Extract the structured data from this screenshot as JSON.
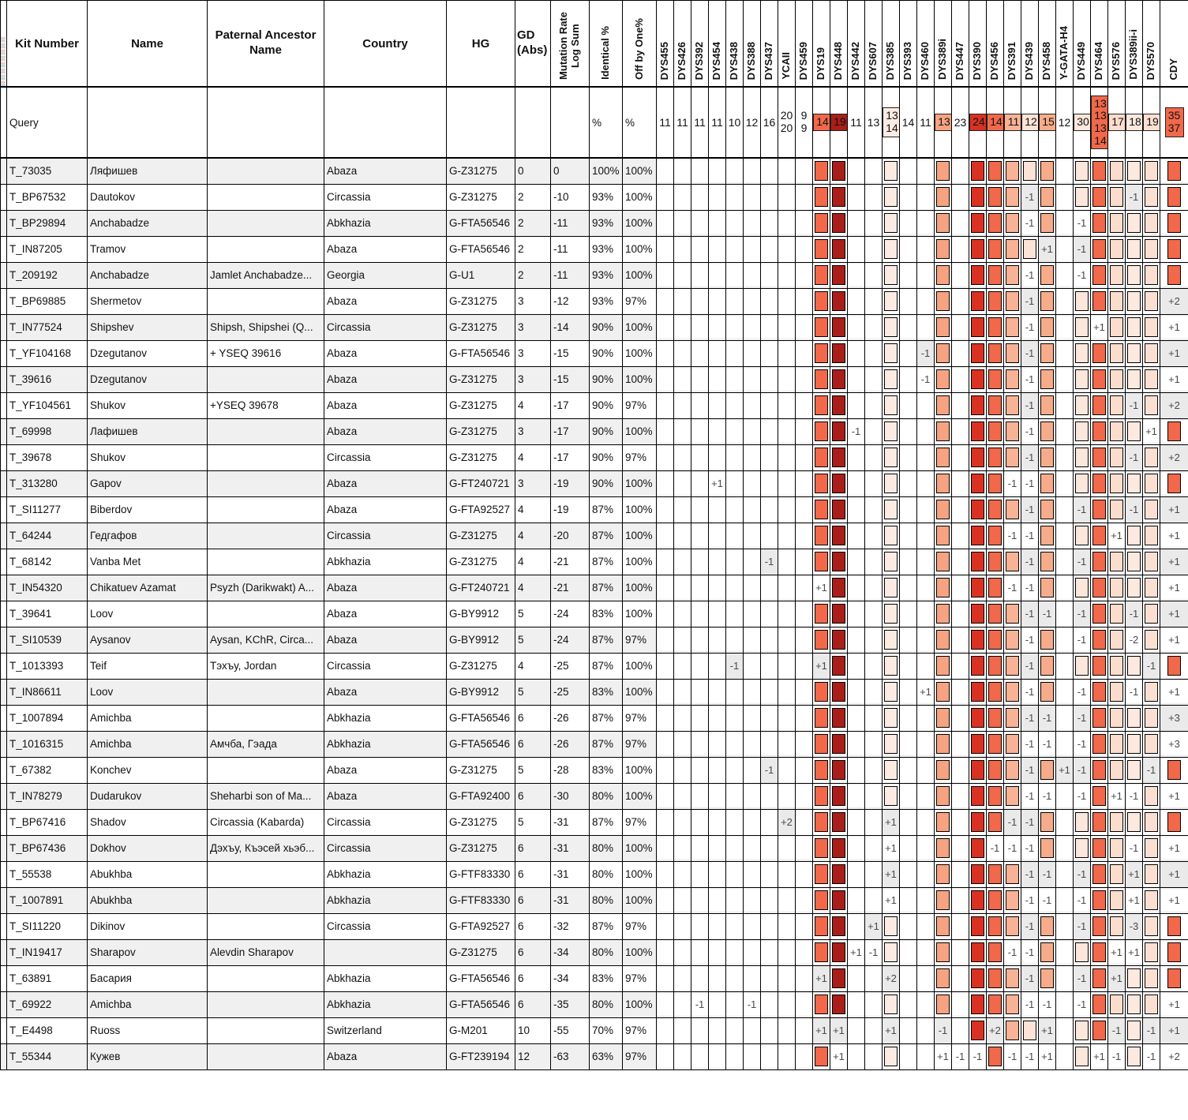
{
  "header": {
    "kit": "Kit Number",
    "name": "Name",
    "ancestor": "Paternal Ancestor Name",
    "country": "Country",
    "hg": "HG",
    "gd_line1": "GD",
    "gd_line2": "(Abs)",
    "mrls_line1": "Mutation Rate",
    "mrls_line2": "Log Sum",
    "identical": "Identical %",
    "offby": "Off by One%"
  },
  "query": {
    "label": "Query",
    "identical": "%",
    "offby": "%"
  },
  "markers": [
    {
      "id": "DYS455",
      "q": "11",
      "color": null
    },
    {
      "id": "DYS426",
      "q": "11",
      "color": null
    },
    {
      "id": "DYS392",
      "q": "11",
      "color": null
    },
    {
      "id": "DYS454",
      "q": "11",
      "color": null
    },
    {
      "id": "DYS438",
      "q": "10",
      "color": null
    },
    {
      "id": "DYS388",
      "q": "12",
      "color": null
    },
    {
      "id": "DYS437",
      "q": "16",
      "color": null
    },
    {
      "id": "YCAII",
      "q": "20 20",
      "color": null
    },
    {
      "id": "DYS459",
      "q": "9 9",
      "color": null
    },
    {
      "id": "DYS19",
      "q": "14",
      "color": "#f1684a"
    },
    {
      "id": "DYS448",
      "q": "19",
      "color": "#a91e18"
    },
    {
      "id": "DYS442",
      "q": "11",
      "color": null
    },
    {
      "id": "DYS607",
      "q": "13",
      "color": null
    },
    {
      "id": "DYS385",
      "q": "13 14",
      "color": "#fcebe2"
    },
    {
      "id": "DYS393",
      "q": "14",
      "color": null
    },
    {
      "id": "DYS460",
      "q": "11",
      "color": null
    },
    {
      "id": "DYS389i",
      "q": "13",
      "color": "#f6a382"
    },
    {
      "id": "DYS447",
      "q": "23",
      "color": null
    },
    {
      "id": "DYS390",
      "q": "24",
      "color": "#d93222"
    },
    {
      "id": "DYS456",
      "q": "14",
      "color": "#f1684a"
    },
    {
      "id": "DYS391",
      "q": "11",
      "color": "#f8b295"
    },
    {
      "id": "DYS439",
      "q": "12",
      "color": "#fce3d7"
    },
    {
      "id": "DYS458",
      "q": "15",
      "color": "#f6ac8a"
    },
    {
      "id": "Y-GATA-H4",
      "q": "12",
      "color": null
    },
    {
      "id": "DYS449",
      "q": "30",
      "color": "#fbe7db"
    },
    {
      "id": "DYS464",
      "q": "13 13 13 14",
      "color": "#f1684a"
    },
    {
      "id": "DYS576",
      "q": "17",
      "color": "#fbdccd"
    },
    {
      "id": "DYS389ii-i",
      "q": "18",
      "color": "#fce9df"
    },
    {
      "id": "DYS570",
      "q": "19",
      "color": "#fbdfd2"
    },
    {
      "id": "CDY",
      "q": "35 37",
      "color": "#f1684a"
    }
  ],
  "rows": [
    {
      "kit": "T_73035",
      "name": "Ляфишев",
      "ancestor": "",
      "country": "Abaza",
      "hg": "G-Z31275",
      "gd": "0",
      "mrls": "0",
      "identical": "100%",
      "offby": "100%",
      "m": {}
    },
    {
      "kit": "T_BP67532",
      "name": "Dautokov",
      "ancestor": "",
      "country": "Circassia",
      "hg": "G-Z31275",
      "gd": "2",
      "mrls": "-10",
      "identical": "93%",
      "offby": "100%",
      "m": {
        "21": "-1",
        "27": "-1"
      }
    },
    {
      "kit": "T_BP29894",
      "name": "Anchabadze",
      "ancestor": "",
      "country": "Abkhazia",
      "hg": "G-FTA56546",
      "gd": "2",
      "mrls": "-11",
      "identical": "93%",
      "offby": "100%",
      "m": {
        "21": "-1",
        "24": "-1"
      }
    },
    {
      "kit": "T_IN87205",
      "name": "Tramov",
      "ancestor": "",
      "country": "Abaza",
      "hg": "G-FTA56546",
      "gd": "2",
      "mrls": "-11",
      "identical": "93%",
      "offby": "100%",
      "m": {
        "22": "+1",
        "24": "-1"
      }
    },
    {
      "kit": "T_209192",
      "name": "Anchabadze",
      "ancestor": "Jamlet Anchabadze...",
      "country": "Georgia",
      "hg": "G-U1",
      "gd": "2",
      "mrls": "-11",
      "identical": "93%",
      "offby": "100%",
      "m": {
        "21": "-1",
        "24": "-1"
      }
    },
    {
      "kit": "T_BP69885",
      "name": "Shermetov",
      "ancestor": "",
      "country": "Abaza",
      "hg": "G-Z31275",
      "gd": "3",
      "mrls": "-12",
      "identical": "93%",
      "offby": "97%",
      "m": {
        "21": "-1",
        "29": "+2"
      }
    },
    {
      "kit": "T_IN77524",
      "name": "Shipshev",
      "ancestor": "Shipsh, Shipshei (Q...",
      "country": "Circassia",
      "hg": "G-Z31275",
      "gd": "3",
      "mrls": "-14",
      "identical": "90%",
      "offby": "100%",
      "m": {
        "21": "-1",
        "25": "+1",
        "29": "+1"
      }
    },
    {
      "kit": "T_YF104168",
      "name": "Dzegutanov",
      "ancestor": "+ YSEQ 39616",
      "country": "Abaza",
      "hg": "G-FTA56546",
      "gd": "3",
      "mrls": "-15",
      "identical": "90%",
      "offby": "100%",
      "m": {
        "15": "-1",
        "21": "-1",
        "29": "+1"
      }
    },
    {
      "kit": "T_39616",
      "name": "Dzegutanov",
      "ancestor": "",
      "country": "Abaza",
      "hg": "G-Z31275",
      "gd": "3",
      "mrls": "-15",
      "identical": "90%",
      "offby": "100%",
      "m": {
        "15": "-1",
        "21": "-1",
        "29": "+1"
      }
    },
    {
      "kit": "T_YF104561",
      "name": "Shukov",
      "ancestor": "+YSEQ 39678",
      "country": "Abaza",
      "hg": "G-Z31275",
      "gd": "4",
      "mrls": "-17",
      "identical": "90%",
      "offby": "97%",
      "m": {
        "21": "-1",
        "27": "-1",
        "29": "+2"
      }
    },
    {
      "kit": "T_69998",
      "name": "Лафишев",
      "ancestor": "",
      "country": "Abaza",
      "hg": "G-Z31275",
      "gd": "3",
      "mrls": "-17",
      "identical": "90%",
      "offby": "100%",
      "m": {
        "11": "-1",
        "21": "-1",
        "28": "+1"
      }
    },
    {
      "kit": "T_39678",
      "name": "Shukov",
      "ancestor": "",
      "country": "Circassia",
      "hg": "G-Z31275",
      "gd": "4",
      "mrls": "-17",
      "identical": "90%",
      "offby": "97%",
      "m": {
        "21": "-1",
        "27": "-1",
        "29": "+2"
      }
    },
    {
      "kit": "T_313280",
      "name": "Gapov",
      "ancestor": "",
      "country": "Abaza",
      "hg": "G-FT240721",
      "gd": "3",
      "mrls": "-19",
      "identical": "90%",
      "offby": "100%",
      "m": {
        "3": "+1",
        "20": "-1",
        "21": "-1"
      }
    },
    {
      "kit": "T_SI11277",
      "name": "Biberdov",
      "ancestor": "",
      "country": "Abaza",
      "hg": "G-FTA92527",
      "gd": "4",
      "mrls": "-19",
      "identical": "87%",
      "offby": "100%",
      "m": {
        "21": "-1",
        "24": "-1",
        "27": "-1",
        "29": "+1"
      }
    },
    {
      "kit": "T_64244",
      "name": "Гедгафов",
      "ancestor": "",
      "country": "Circassia",
      "hg": "G-Z31275",
      "gd": "4",
      "mrls": "-20",
      "identical": "87%",
      "offby": "100%",
      "m": {
        "20": "-1",
        "21": "-1",
        "26": "+1",
        "29": "+1"
      }
    },
    {
      "kit": "T_68142",
      "name": "Vanba Met",
      "ancestor": "",
      "country": "Abkhazia",
      "hg": "G-Z31275",
      "gd": "4",
      "mrls": "-21",
      "identical": "87%",
      "offby": "100%",
      "m": {
        "6": "-1",
        "21": "-1",
        "24": "-1",
        "29": "+1"
      }
    },
    {
      "kit": "T_IN54320",
      "name": "Chikatuev Azamat",
      "ancestor": "Psyzh (Darikwakt) A...",
      "country": "Abaza",
      "hg": "G-FT240721",
      "gd": "4",
      "mrls": "-21",
      "identical": "87%",
      "offby": "100%",
      "m": {
        "9": "+1",
        "20": "-1",
        "21": "-1",
        "29": "+1"
      }
    },
    {
      "kit": "T_39641",
      "name": "Loov",
      "ancestor": "",
      "country": "Abaza",
      "hg": "G-BY9912",
      "gd": "5",
      "mrls": "-24",
      "identical": "83%",
      "offby": "100%",
      "m": {
        "21": "-1",
        "22": "-1",
        "24": "-1",
        "27": "-1",
        "29": "+1"
      }
    },
    {
      "kit": "T_SI10539",
      "name": "Aysanov",
      "ancestor": "Aysan, KChR, Circa...",
      "country": "Abaza",
      "hg": "G-BY9912",
      "gd": "5",
      "mrls": "-24",
      "identical": "87%",
      "offby": "97%",
      "m": {
        "21": "-1",
        "24": "-1",
        "27": "-2",
        "29": "+1"
      }
    },
    {
      "kit": "T_1013393",
      "name": "Teif",
      "ancestor": "Тэхъу, Jordan",
      "country": "Circassia",
      "hg": "G-Z31275",
      "gd": "4",
      "mrls": "-25",
      "identical": "87%",
      "offby": "100%",
      "m": {
        "4": "-1",
        "9": "+1",
        "21": "-1",
        "28": "-1"
      }
    },
    {
      "kit": "T_IN86611",
      "name": "Loov",
      "ancestor": "",
      "country": "Abaza",
      "hg": "G-BY9912",
      "gd": "5",
      "mrls": "-25",
      "identical": "83%",
      "offby": "100%",
      "m": {
        "15": "+1",
        "21": "-1",
        "24": "-1",
        "27": "-1",
        "29": "+1"
      }
    },
    {
      "kit": "T_1007894",
      "name": "Amichba",
      "ancestor": "",
      "country": "Abkhazia",
      "hg": "G-FTA56546",
      "gd": "6",
      "mrls": "-26",
      "identical": "87%",
      "offby": "97%",
      "m": {
        "21": "-1",
        "22": "-1",
        "24": "-1",
        "29": "+3"
      }
    },
    {
      "kit": "T_1016315",
      "name": "Amichba",
      "ancestor": "Амчба, Гэада",
      "country": "Abkhazia",
      "hg": "G-FTA56546",
      "gd": "6",
      "mrls": "-26",
      "identical": "87%",
      "offby": "97%",
      "m": {
        "21": "-1",
        "22": "-1",
        "24": "-1",
        "29": "+3"
      }
    },
    {
      "kit": "T_67382",
      "name": "Konchev",
      "ancestor": "",
      "country": "Abaza",
      "hg": "G-Z31275",
      "gd": "5",
      "mrls": "-28",
      "identical": "83%",
      "offby": "100%",
      "m": {
        "6": "-1",
        "21": "-1",
        "23": "+1",
        "24": "-1",
        "28": "-1"
      }
    },
    {
      "kit": "T_IN78279",
      "name": "Dudarukov",
      "ancestor": "Sheharbi son of Ma...",
      "country": "Abaza",
      "hg": "G-FTA92400",
      "gd": "6",
      "mrls": "-30",
      "identical": "80%",
      "offby": "100%",
      "m": {
        "21": "-1",
        "22": "-1",
        "24": "-1",
        "26": "+1",
        "27": "-1",
        "29": "+1"
      }
    },
    {
      "kit": "T_BP67416",
      "name": "Shadov",
      "ancestor": "Circassia (Kabarda)",
      "country": "Circassia",
      "hg": "G-Z31275",
      "gd": "5",
      "mrls": "-31",
      "identical": "87%",
      "offby": "97%",
      "m": {
        "7": "+2",
        "13": "+1",
        "20": "-1",
        "21": "-1"
      }
    },
    {
      "kit": "T_BP67436",
      "name": "Dokhov",
      "ancestor": "Дэхъу, Къэсей хьэб...",
      "country": "Circassia",
      "hg": "G-Z31275",
      "gd": "6",
      "mrls": "-31",
      "identical": "80%",
      "offby": "100%",
      "m": {
        "13": "+1",
        "19": "-1",
        "20": "-1",
        "21": "-1",
        "27": "-1",
        "29": "+1"
      }
    },
    {
      "kit": "T_55538",
      "name": "Abukhba",
      "ancestor": "",
      "country": "Abkhazia",
      "hg": "G-FTF83330",
      "gd": "6",
      "mrls": "-31",
      "identical": "80%",
      "offby": "100%",
      "m": {
        "13": "+1",
        "21": "-1",
        "22": "-1",
        "24": "-1",
        "27": "+1",
        "29": "+1"
      }
    },
    {
      "kit": "T_1007891",
      "name": "Abukhba",
      "ancestor": "",
      "country": "Abkhazia",
      "hg": "G-FTF83330",
      "gd": "6",
      "mrls": "-31",
      "identical": "80%",
      "offby": "100%",
      "m": {
        "13": "+1",
        "21": "-1",
        "22": "-1",
        "24": "-1",
        "27": "+1",
        "29": "+1"
      }
    },
    {
      "kit": "T_SI11220",
      "name": "Dikinov",
      "ancestor": "",
      "country": "Circassia",
      "hg": "G-FTA92527",
      "gd": "6",
      "mrls": "-32",
      "identical": "87%",
      "offby": "97%",
      "m": {
        "12": "+1",
        "21": "-1",
        "24": "-1",
        "27": "-3"
      }
    },
    {
      "kit": "T_IN19417",
      "name": "Sharapov",
      "ancestor": "Alevdin Sharapov",
      "country": "",
      "hg": "G-Z31275",
      "gd": "6",
      "mrls": "-34",
      "identical": "80%",
      "offby": "100%",
      "m": {
        "11": "+1",
        "12": "-1",
        "20": "-1",
        "21": "-1",
        "26": "+1",
        "27": "+1"
      }
    },
    {
      "kit": "T_63891",
      "name": "Басария",
      "ancestor": "",
      "country": "Abkhazia",
      "hg": "G-FTA56546",
      "gd": "6",
      "mrls": "-34",
      "identical": "83%",
      "offby": "97%",
      "m": {
        "9": "+1",
        "13": "+2",
        "21": "-1",
        "24": "-1",
        "26": "+1"
      }
    },
    {
      "kit": "T_69922",
      "name": "Amichba",
      "ancestor": "",
      "country": "Abkhazia",
      "hg": "G-FTA56546",
      "gd": "6",
      "mrls": "-35",
      "identical": "80%",
      "offby": "100%",
      "m": {
        "2": "-1",
        "5": "-1",
        "21": "-1",
        "22": "-1",
        "24": "-1",
        "29": "+1"
      }
    },
    {
      "kit": "T_E4498",
      "name": "Ruoss",
      "ancestor": "",
      "country": "Switzerland",
      "hg": "G-M201",
      "gd": "10",
      "mrls": "-55",
      "identical": "70%",
      "offby": "97%",
      "m": {
        "9": "+1",
        "10": "+1",
        "13": "+1",
        "16": "-1",
        "19": "+2",
        "22": "+1",
        "26": "-1",
        "28": "-1",
        "29": "+1"
      }
    },
    {
      "kit": "T_55344",
      "name": "Кужев",
      "ancestor": "",
      "country": "Abaza",
      "hg": "G-FT239194",
      "gd": "12",
      "mrls": "-63",
      "identical": "63%",
      "offby": "97%",
      "m": {
        "10": "+1",
        "16": "+1",
        "17": "-1",
        "18": "-1",
        "20": "-1",
        "21": "-1",
        "22": "+1",
        "25": "+1",
        "26": "-1",
        "28": "-1",
        "29": "+2"
      }
    }
  ]
}
